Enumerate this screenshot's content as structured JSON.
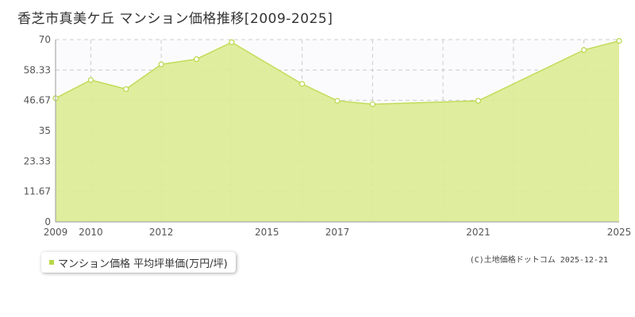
{
  "title": "香芝市真美ケ丘 マンション価格推移[2009-2025]",
  "legend": {
    "label": "マンション価格 平均坪単価(万円/坪)"
  },
  "credit": "(C)土地価格ドットコム 2025-12-21",
  "colors": {
    "fill": "#dcec96",
    "line": "#c2dc5a",
    "marker": "#b8d84a",
    "grid": "#cccccc",
    "axis": "#999999",
    "plot_bg": "#fbfbfd"
  },
  "chart_data": {
    "type": "area",
    "title": "香芝市真美ケ丘 マンション価格推移[2009-2025]",
    "xlabel": "",
    "ylabel": "",
    "xlim": [
      2009,
      2025
    ],
    "ylim": [
      0,
      70
    ],
    "grid": true,
    "legend_position": "bottom-left",
    "y_ticks": [
      "0",
      "11.67",
      "23.33",
      "35",
      "46.67",
      "58.33",
      "70"
    ],
    "x_ticks": [
      "2009",
      "2010",
      "2012",
      "2015",
      "2017",
      "2021",
      "2025"
    ],
    "series": [
      {
        "name": "マンション価格 平均坪単価(万円/坪)",
        "x": [
          2009,
          2010,
          2011,
          2012,
          2013,
          2014,
          2016,
          2017,
          2018,
          2021,
          2024,
          2025
        ],
        "values": [
          47.5,
          54.5,
          51.0,
          60.5,
          62.5,
          69.0,
          53.0,
          46.5,
          45.2,
          46.5,
          66.0,
          69.5
        ]
      }
    ]
  }
}
